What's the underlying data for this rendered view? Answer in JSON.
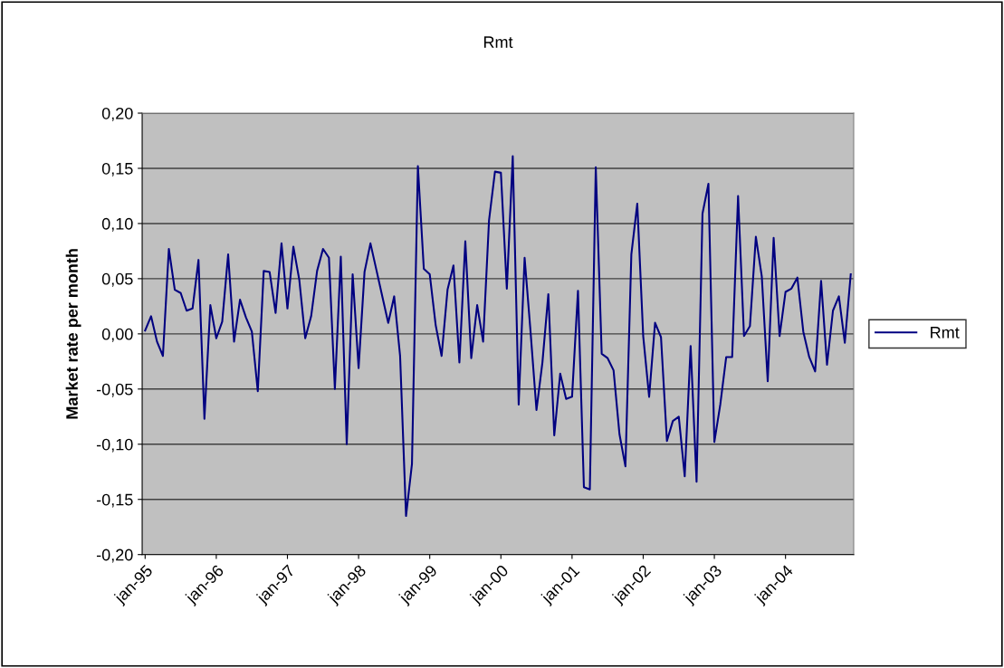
{
  "chart_data": {
    "type": "line",
    "title": "Rmt",
    "ylabel": "Market rate per month",
    "categories": [
      "jan-95",
      null,
      null,
      null,
      null,
      null,
      null,
      null,
      null,
      null,
      null,
      null,
      "jan-96",
      null,
      null,
      null,
      null,
      null,
      null,
      null,
      null,
      null,
      null,
      null,
      "jan-97",
      null,
      null,
      null,
      null,
      null,
      null,
      null,
      null,
      null,
      null,
      null,
      "jan-98",
      null,
      null,
      null,
      null,
      null,
      null,
      null,
      null,
      null,
      null,
      null,
      "jan-99",
      null,
      null,
      null,
      null,
      null,
      null,
      null,
      null,
      null,
      null,
      null,
      "jan-00",
      null,
      null,
      null,
      null,
      null,
      null,
      null,
      null,
      null,
      null,
      null,
      "jan-01",
      null,
      null,
      null,
      null,
      null,
      null,
      null,
      null,
      null,
      null,
      null,
      "jan-02",
      null,
      null,
      null,
      null,
      null,
      null,
      null,
      null,
      null,
      null,
      null,
      "jan-03",
      null,
      null,
      null,
      null,
      null,
      null,
      null,
      null,
      null,
      null,
      null,
      "jan-04",
      null,
      null,
      null,
      null,
      null,
      null,
      null,
      null,
      null,
      null,
      null
    ],
    "series": [
      {
        "name": "Rmt",
        "color": "#000080",
        "values": [
          0.003,
          0.016,
          -0.007,
          -0.02,
          0.077,
          0.04,
          0.037,
          0.021,
          0.023,
          0.067,
          -0.077,
          0.026,
          -0.004,
          0.011,
          0.072,
          -0.007,
          0.031,
          0.015,
          0.002,
          -0.052,
          0.057,
          0.056,
          0.019,
          0.082,
          0.023,
          0.079,
          0.049,
          -0.004,
          0.016,
          0.057,
          0.077,
          0.069,
          -0.05,
          0.07,
          -0.1,
          0.054,
          -0.031,
          0.056,
          0.082,
          0.058,
          0.034,
          0.01,
          0.034,
          -0.02,
          -0.165,
          -0.118,
          0.152,
          0.059,
          0.054,
          0.008,
          -0.02,
          0.04,
          0.062,
          -0.026,
          0.084,
          -0.022,
          0.026,
          -0.007,
          0.103,
          0.147,
          0.146,
          0.041,
          0.161,
          -0.064,
          0.069,
          0.002,
          -0.069,
          -0.026,
          0.036,
          -0.092,
          -0.036,
          -0.059,
          -0.057,
          0.039,
          -0.139,
          -0.141,
          0.151,
          -0.018,
          -0.022,
          -0.033,
          -0.091,
          -0.12,
          0.072,
          0.118,
          -0.002,
          -0.057,
          0.01,
          -0.003,
          -0.097,
          -0.079,
          -0.075,
          -0.129,
          -0.011,
          -0.134,
          0.109,
          0.136,
          -0.098,
          -0.064,
          -0.021,
          -0.021,
          0.125,
          -0.002,
          0.007,
          0.088,
          0.052,
          -0.043,
          0.087,
          -0.002,
          0.038,
          0.041,
          0.051,
          0.002,
          -0.021,
          -0.034,
          0.048,
          -0.028,
          0.021,
          0.034,
          -0.008,
          0.054
        ]
      }
    ],
    "ylim": [
      -0.2,
      0.2
    ],
    "yticks": [
      {
        "value": -0.2,
        "label": "-0,20"
      },
      {
        "value": -0.15,
        "label": "-0,15"
      },
      {
        "value": -0.1,
        "label": "-0,10"
      },
      {
        "value": -0.05,
        "label": "-0,05"
      },
      {
        "value": 0,
        "label": "0,00"
      },
      {
        "value": 0.05,
        "label": "0,05"
      },
      {
        "value": 0.1,
        "label": "0,10"
      },
      {
        "value": 0.15,
        "label": "0,15"
      },
      {
        "value": 0.2,
        "label": "0,20"
      }
    ],
    "grid": "y",
    "legend": "right",
    "line_style": "solid",
    "marker": "none"
  }
}
